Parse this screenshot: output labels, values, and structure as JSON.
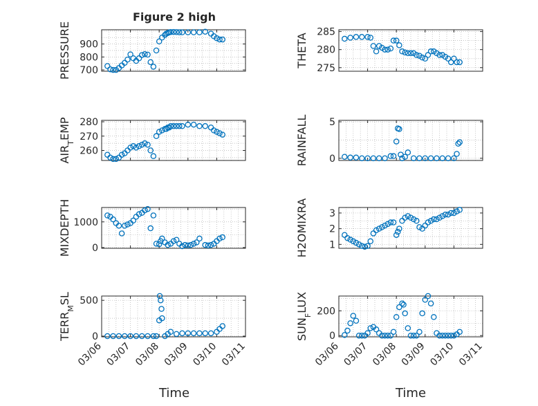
{
  "figure": {
    "title": "Figure 2 high",
    "xlabel": "Time"
  },
  "chart_data": [
    {
      "type": "scatter",
      "ylabel": "PRESSURE",
      "yticks": [
        700,
        800,
        900
      ],
      "ylim": [
        690,
        1010
      ],
      "xticks": [
        "03/06",
        "03/07",
        "03/08",
        "03/09",
        "03/10",
        "03/11"
      ],
      "xlim": [
        0,
        5
      ],
      "grid": true,
      "x": [
        0.2,
        0.3,
        0.4,
        0.5,
        0.6,
        0.7,
        0.8,
        0.9,
        1.0,
        1.1,
        1.2,
        1.3,
        1.4,
        1.5,
        1.6,
        1.7,
        1.8,
        1.9,
        2.0,
        2.1,
        2.2,
        2.25,
        2.3,
        2.35,
        2.4,
        2.5,
        2.6,
        2.7,
        2.8,
        3.0,
        3.2,
        3.4,
        3.6,
        3.8,
        3.9,
        4.0,
        4.1,
        4.2
      ],
      "y": [
        730,
        705,
        700,
        700,
        715,
        735,
        755,
        780,
        820,
        790,
        770,
        790,
        815,
        822,
        818,
        760,
        725,
        850,
        920,
        950,
        970,
        980,
        985,
        990,
        992,
        993,
        992,
        990,
        990,
        990,
        990,
        990,
        995,
        980,
        960,
        945,
        935,
        935
      ]
    },
    {
      "type": "scatter",
      "ylabel": "THETA",
      "yticks": [
        275,
        280,
        285
      ],
      "ylim": [
        274,
        285.5
      ],
      "xticks": [
        "03/06",
        "03/07",
        "03/08",
        "03/09",
        "03/10",
        "03/11"
      ],
      "xlim": [
        0,
        5
      ],
      "grid": true,
      "x": [
        0.2,
        0.4,
        0.6,
        0.8,
        1.0,
        1.1,
        1.2,
        1.3,
        1.4,
        1.5,
        1.6,
        1.7,
        1.8,
        1.9,
        2.0,
        2.1,
        2.2,
        2.3,
        2.4,
        2.5,
        2.6,
        2.7,
        2.8,
        2.9,
        3.0,
        3.1,
        3.2,
        3.3,
        3.4,
        3.5,
        3.6,
        3.7,
        3.8,
        3.9,
        4.0,
        4.1,
        4.2
      ],
      "y": [
        283,
        283.3,
        283.5,
        283.5,
        283.5,
        283.3,
        281,
        279.5,
        281,
        280.5,
        280,
        280,
        280.3,
        282.5,
        282.5,
        281.2,
        279.5,
        279.2,
        279,
        279,
        279,
        278.5,
        278.3,
        277.8,
        277.5,
        278.5,
        279.5,
        279.5,
        279,
        278.5,
        278.5,
        278,
        277.5,
        276.5,
        277.5,
        276.5,
        276.5
      ]
    },
    {
      "type": "scatter",
      "ylabel": "AIR_TEMP",
      "ylabel_main": "AIR",
      "ylabel_sub": "T",
      "ylabel_tail": "EMP",
      "yticks": [
        260,
        270,
        280
      ],
      "ylim": [
        253,
        281
      ],
      "xticks": [
        "03/06",
        "03/07",
        "03/08",
        "03/09",
        "03/10",
        "03/11"
      ],
      "xlim": [
        0,
        5
      ],
      "grid": true,
      "x": [
        0.2,
        0.3,
        0.4,
        0.5,
        0.6,
        0.7,
        0.8,
        0.9,
        1.0,
        1.1,
        1.2,
        1.3,
        1.4,
        1.5,
        1.6,
        1.7,
        1.8,
        1.9,
        2.0,
        2.1,
        2.2,
        2.25,
        2.3,
        2.35,
        2.4,
        2.5,
        2.6,
        2.7,
        2.8,
        3.0,
        3.2,
        3.4,
        3.6,
        3.8,
        3.9,
        4.0,
        4.1,
        4.2
      ],
      "y": [
        257,
        255,
        254,
        254,
        255,
        257,
        258,
        260,
        262,
        263,
        262,
        263,
        264,
        265,
        264,
        260,
        256,
        270,
        273,
        274,
        275,
        275,
        276,
        276,
        277,
        277,
        277,
        277,
        277,
        278,
        278,
        277,
        277,
        276,
        274,
        273,
        272,
        271
      ]
    },
    {
      "type": "scatter",
      "ylabel": "RAINFALL",
      "yticks": [
        0,
        5
      ],
      "ylim": [
        -0.3,
        5.2
      ],
      "xticks": [
        "03/06",
        "03/07",
        "03/08",
        "03/09",
        "03/10",
        "03/11"
      ],
      "xlim": [
        0,
        5
      ],
      "grid": true,
      "x": [
        0.2,
        0.4,
        0.6,
        0.8,
        1.0,
        1.2,
        1.4,
        1.6,
        1.8,
        1.9,
        2.0,
        2.05,
        2.1,
        2.15,
        2.2,
        2.3,
        2.4,
        2.6,
        2.8,
        3.0,
        3.2,
        3.4,
        3.6,
        3.8,
        4.0,
        4.1,
        4.15,
        4.2
      ],
      "y": [
        0.2,
        0.1,
        0.1,
        0,
        0,
        0,
        0,
        0,
        0.3,
        0.3,
        2.3,
        4.1,
        4.0,
        0.5,
        0,
        0.2,
        0.8,
        0,
        0,
        0,
        0,
        0,
        0,
        0,
        0,
        0.6,
        2.0,
        2.2
      ]
    },
    {
      "type": "scatter",
      "ylabel": "MIXDEPTH",
      "yticks": [
        0,
        1000
      ],
      "ylim": [
        -30,
        1560
      ],
      "xticks": [
        "03/06",
        "03/07",
        "03/08",
        "03/09",
        "03/10",
        "03/11"
      ],
      "xlim": [
        0,
        5
      ],
      "grid": true,
      "x": [
        0.2,
        0.3,
        0.4,
        0.5,
        0.6,
        0.7,
        0.8,
        0.9,
        1.0,
        1.1,
        1.2,
        1.3,
        1.4,
        1.5,
        1.6,
        1.7,
        1.8,
        1.9,
        2.0,
        2.05,
        2.1,
        2.2,
        2.3,
        2.4,
        2.5,
        2.6,
        2.7,
        2.8,
        2.9,
        3.0,
        3.1,
        3.2,
        3.3,
        3.4,
        3.6,
        3.7,
        3.8,
        3.9,
        4.0,
        4.1,
        4.2
      ],
      "y": [
        1250,
        1200,
        1100,
        950,
        850,
        550,
        850,
        900,
        950,
        1050,
        1200,
        1300,
        1350,
        1450,
        1500,
        750,
        1250,
        150,
        130,
        250,
        350,
        200,
        100,
        150,
        250,
        300,
        150,
        50,
        100,
        80,
        100,
        150,
        200,
        350,
        100,
        80,
        100,
        150,
        250,
        350,
        400
      ]
    },
    {
      "type": "scatter",
      "ylabel": "H2OMIXRA",
      "yticks": [
        1,
        2,
        3
      ],
      "ylim": [
        0.75,
        3.35
      ],
      "xticks": [
        "03/06",
        "03/07",
        "03/08",
        "03/09",
        "03/10",
        "03/11"
      ],
      "xlim": [
        0,
        5
      ],
      "grid": true,
      "x": [
        0.2,
        0.3,
        0.4,
        0.5,
        0.6,
        0.7,
        0.8,
        0.9,
        1.0,
        1.1,
        1.2,
        1.3,
        1.4,
        1.5,
        1.6,
        1.7,
        1.8,
        1.9,
        2.0,
        2.05,
        2.1,
        2.2,
        2.3,
        2.4,
        2.5,
        2.6,
        2.7,
        2.8,
        2.9,
        3.0,
        3.1,
        3.2,
        3.3,
        3.4,
        3.5,
        3.6,
        3.7,
        3.8,
        3.9,
        4.0,
        4.1,
        4.2
      ],
      "y": [
        1.6,
        1.4,
        1.3,
        1.2,
        1.1,
        1.0,
        0.9,
        0.85,
        0.9,
        1.2,
        1.7,
        1.9,
        2.0,
        2.1,
        2.2,
        2.3,
        2.4,
        2.4,
        1.6,
        1.8,
        2.0,
        2.5,
        2.7,
        2.8,
        2.7,
        2.6,
        2.5,
        2.1,
        2.0,
        2.2,
        2.4,
        2.5,
        2.6,
        2.6,
        2.7,
        2.8,
        2.9,
        2.9,
        3.0,
        3.0,
        3.1,
        3.2
      ]
    },
    {
      "type": "scatter",
      "ylabel": "TERR_MSL",
      "ylabel_main": "TERR",
      "ylabel_sub": "M",
      "ylabel_tail": "SL",
      "yticks": [
        0,
        500
      ],
      "ylim": [
        -10,
        560
      ],
      "xticks": [
        "03/06",
        "03/07",
        "03/08",
        "03/09",
        "03/10",
        "03/11"
      ],
      "xlim": [
        0,
        5
      ],
      "grid": true,
      "x": [
        0.2,
        0.4,
        0.6,
        0.8,
        1.0,
        1.2,
        1.4,
        1.6,
        1.8,
        1.9,
        2.0,
        2.02,
        2.05,
        2.08,
        2.1,
        2.2,
        2.3,
        2.4,
        2.6,
        2.8,
        3.0,
        3.2,
        3.4,
        3.6,
        3.8,
        4.0,
        4.1,
        4.2
      ],
      "y": [
        0,
        0,
        0,
        0,
        0,
        0,
        0,
        0,
        0,
        0,
        220,
        560,
        500,
        380,
        250,
        0,
        30,
        60,
        30,
        40,
        40,
        40,
        40,
        40,
        40,
        60,
        100,
        140
      ]
    },
    {
      "type": "scatter",
      "ylabel": "SUN_FLUX",
      "ylabel_main": "SUN",
      "ylabel_sub": "F",
      "ylabel_tail": "LUX",
      "yticks": [
        0,
        200
      ],
      "ylim": [
        -10,
        320
      ],
      "xticks": [
        "03/06",
        "03/07",
        "03/08",
        "03/09",
        "03/10",
        "03/11"
      ],
      "xlim": [
        0,
        5
      ],
      "grid": true,
      "x": [
        0.2,
        0.3,
        0.4,
        0.5,
        0.6,
        0.7,
        0.8,
        0.9,
        1.0,
        1.1,
        1.2,
        1.3,
        1.4,
        1.5,
        1.6,
        1.7,
        1.8,
        1.9,
        2.0,
        2.1,
        2.2,
        2.25,
        2.3,
        2.4,
        2.5,
        2.6,
        2.7,
        2.8,
        2.9,
        3.0,
        3.1,
        3.2,
        3.3,
        3.4,
        3.5,
        3.6,
        3.7,
        3.8,
        3.9,
        4.0,
        4.1,
        4.2
      ],
      "y": [
        5,
        40,
        100,
        160,
        120,
        0,
        0,
        0,
        20,
        60,
        70,
        50,
        20,
        0,
        0,
        0,
        0,
        30,
        150,
        230,
        260,
        250,
        180,
        60,
        0,
        0,
        0,
        30,
        180,
        290,
        320,
        260,
        150,
        20,
        0,
        0,
        0,
        0,
        0,
        0,
        10,
        30
      ]
    }
  ]
}
